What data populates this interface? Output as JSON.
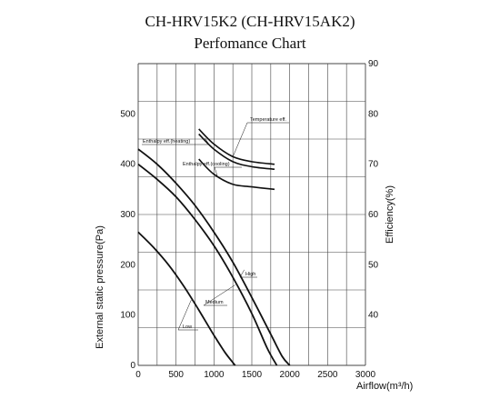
{
  "chart_data": {
    "type": "line",
    "title": "CH-HRV15K2 (CH-HRV15AK2)",
    "subtitle": "Perfomance Chart",
    "xlabel": "Airflow(m³/h)",
    "ylabel_left": "External static pressure(Pa)",
    "ylabel_right": "Efficiency(%)",
    "xlim": [
      0,
      3000
    ],
    "ylim_left": [
      0,
      600
    ],
    "ylim_right": [
      30,
      90
    ],
    "x_ticks": [
      "0",
      "500",
      "1000",
      "1500",
      "2000",
      "2500",
      "3000"
    ],
    "y_left_ticks": [
      "0",
      "100",
      "200",
      "300",
      "400",
      "500"
    ],
    "y_right_ticks": [
      "40",
      "50",
      "60",
      "70",
      "80",
      "90"
    ],
    "grid": true,
    "pressure_series": [
      {
        "name": "High",
        "x": [
          0,
          250,
          500,
          750,
          1000,
          1250,
          1500,
          1750,
          1900,
          2000
        ],
        "y": [
          430,
          400,
          362,
          318,
          265,
          205,
          135,
          62,
          18,
          0
        ]
      },
      {
        "name": "Medium",
        "x": [
          0,
          250,
          500,
          750,
          1000,
          1250,
          1500,
          1700,
          1830
        ],
        "y": [
          400,
          370,
          335,
          290,
          238,
          175,
          103,
          35,
          0
        ]
      },
      {
        "name": "Low",
        "x": [
          0,
          200,
          400,
          600,
          800,
          1000,
          1150,
          1280
        ],
        "y": [
          265,
          235,
          200,
          158,
          110,
          60,
          25,
          0
        ]
      }
    ],
    "efficiency_series": [
      {
        "name": "Temperature eff.",
        "x": [
          800,
          1000,
          1250,
          1500,
          1800
        ],
        "y": [
          77,
          74,
          71.5,
          70.5,
          70
        ]
      },
      {
        "name": "Enthalpy eff.(heating)",
        "x": [
          800,
          1000,
          1250,
          1500,
          1800
        ],
        "y": [
          76,
          73,
          70.5,
          69.5,
          69
        ]
      },
      {
        "name": "Enthalpy eff.(cooling)",
        "x": [
          800,
          1000,
          1250,
          1500,
          1800
        ],
        "y": [
          71,
          68,
          66,
          65.5,
          65
        ]
      }
    ]
  },
  "colors": {
    "line": "#111111",
    "grid": "#444444"
  }
}
